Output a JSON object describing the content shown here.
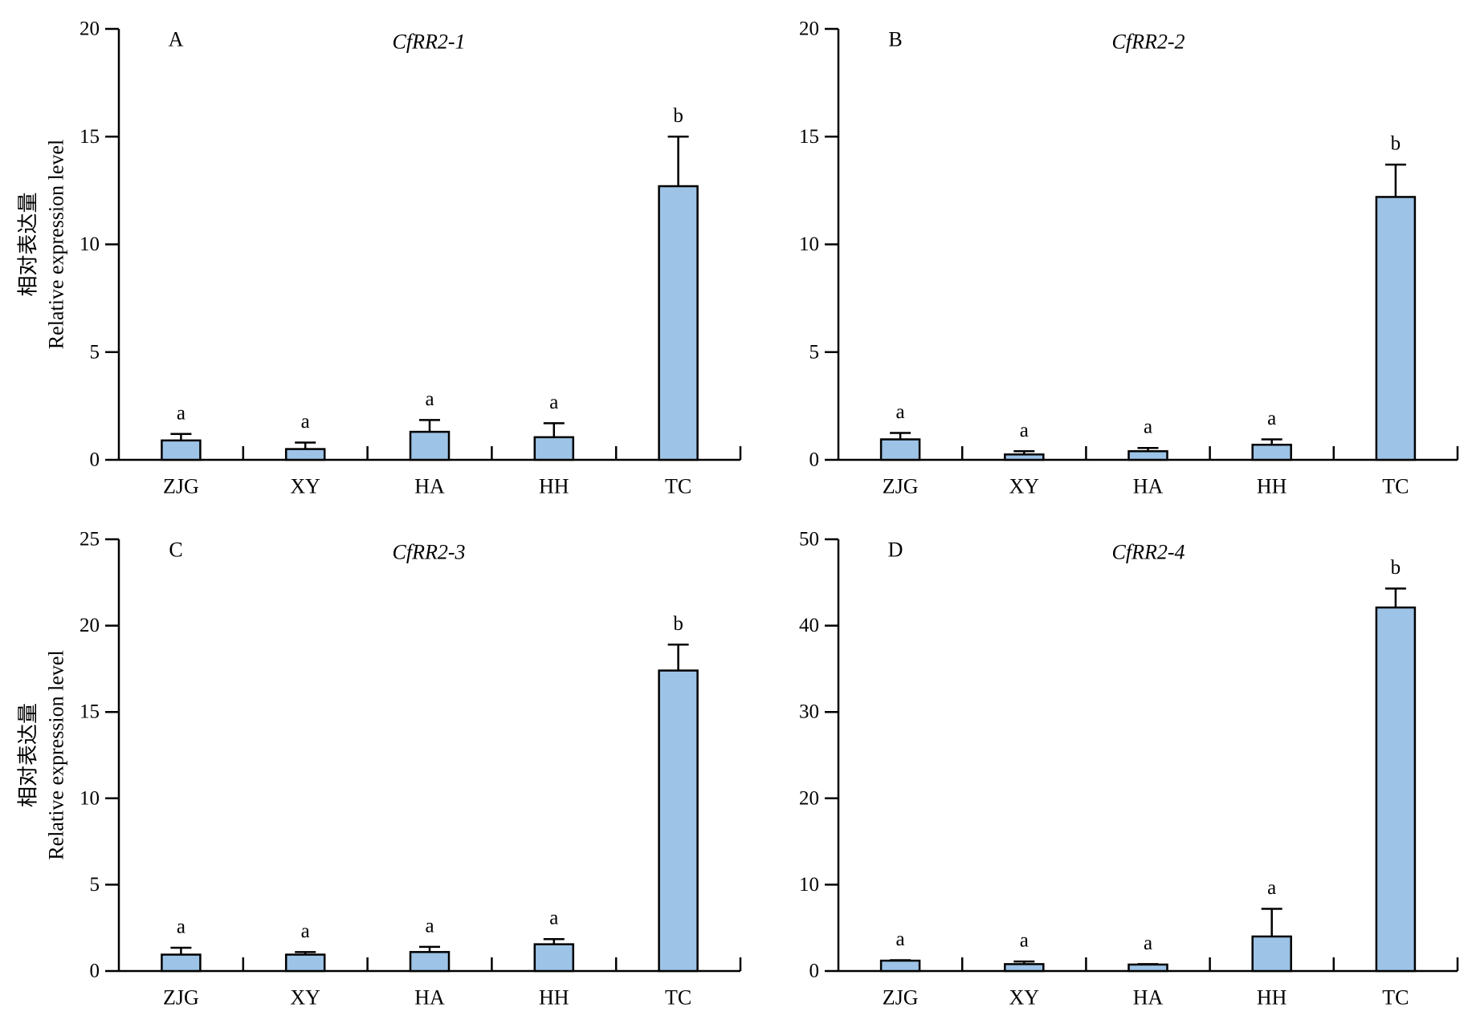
{
  "colors": {
    "bar_fill": "#9dc3e6",
    "outline": "#000000"
  },
  "chart_data": [
    {
      "type": "bar",
      "panel_label": "A",
      "title": "CfRR2-1",
      "ylabel": [
        "相对表达量",
        "Relative expression level"
      ],
      "categories": [
        "ZJG",
        "XY",
        "HA",
        "HH",
        "TC"
      ],
      "values": [
        0.9,
        0.5,
        1.3,
        1.05,
        12.7
      ],
      "errors": [
        0.3,
        0.3,
        0.55,
        0.65,
        2.3
      ],
      "significance": [
        "a",
        "a",
        "a",
        "a",
        "b"
      ],
      "ylim": [
        0,
        20
      ],
      "yticks": [
        0,
        5,
        10,
        15,
        20
      ]
    },
    {
      "type": "bar",
      "panel_label": "B",
      "title": "CfRR2-2",
      "categories": [
        "ZJG",
        "XY",
        "HA",
        "HH",
        "TC"
      ],
      "values": [
        0.95,
        0.25,
        0.4,
        0.7,
        12.2
      ],
      "errors": [
        0.3,
        0.15,
        0.15,
        0.25,
        1.5
      ],
      "significance": [
        "a",
        "a",
        "a",
        "a",
        "b"
      ],
      "ylim": [
        0,
        20
      ],
      "yticks": [
        0,
        5,
        10,
        15,
        20
      ]
    },
    {
      "type": "bar",
      "panel_label": "C",
      "title": "CfRR2-3",
      "ylabel": [
        "相对表达量",
        "Relative expression level"
      ],
      "categories": [
        "ZJG",
        "XY",
        "HA",
        "HH",
        "TC"
      ],
      "values": [
        0.95,
        0.95,
        1.1,
        1.55,
        17.4
      ],
      "errors": [
        0.4,
        0.15,
        0.3,
        0.3,
        1.5
      ],
      "significance": [
        "a",
        "a",
        "a",
        "a",
        "b"
      ],
      "ylim": [
        0,
        25
      ],
      "yticks": [
        0,
        5,
        10,
        15,
        20,
        25
      ]
    },
    {
      "type": "bar",
      "panel_label": "D",
      "title": "CfRR2-4",
      "categories": [
        "ZJG",
        "XY",
        "HA",
        "HH",
        "TC"
      ],
      "values": [
        1.2,
        0.8,
        0.75,
        4.0,
        42.1
      ],
      "errors": [
        0.05,
        0.3,
        0.05,
        3.2,
        2.2
      ],
      "significance": [
        "a",
        "a",
        "a",
        "a",
        "b"
      ],
      "ylim": [
        0,
        50
      ],
      "yticks": [
        0,
        10,
        20,
        30,
        40,
        50
      ]
    }
  ]
}
